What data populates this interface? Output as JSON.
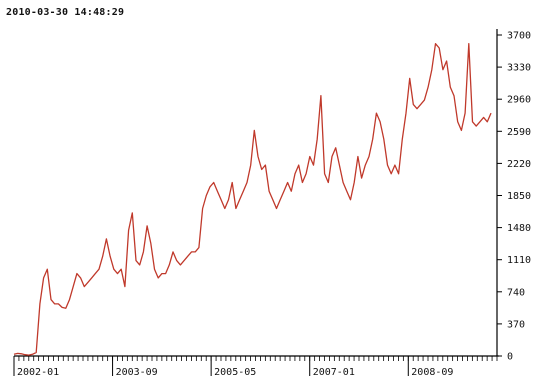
{
  "header": {
    "timestamp": "2010-03-30 14:48:29"
  },
  "colors": {
    "line": "#c0392b",
    "axis": "#000000",
    "text": "#111111"
  },
  "chart_data": {
    "type": "line",
    "title": "",
    "xlabel": "",
    "ylabel": "",
    "ylim": [
      0,
      3700
    ],
    "y_ticks": [
      0,
      370,
      740,
      1110,
      1480,
      1850,
      2220,
      2590,
      2960,
      3330,
      3700
    ],
    "y_axis_side": "right",
    "grid": false,
    "x_tick_labels": [
      "2002-01",
      "2003-09",
      "2005-05",
      "2007-01",
      "2008-09"
    ],
    "x_start": "2002-01",
    "x_end": "2010-03",
    "series": [
      {
        "values": [
          20,
          30,
          25,
          15,
          10,
          20,
          40,
          600,
          900,
          1000,
          650,
          600,
          600,
          560,
          550,
          650,
          800,
          950,
          900,
          800,
          850,
          900,
          950,
          1000,
          1150,
          1350,
          1150,
          1000,
          950,
          1000,
          800,
          1450,
          1650,
          1100,
          1050,
          1200,
          1500,
          1300,
          1000,
          900,
          950,
          950,
          1050,
          1200,
          1100,
          1050,
          1100,
          1150,
          1200,
          1200,
          1250,
          1700,
          1850,
          1950,
          2000,
          1900,
          1800,
          1700,
          1800,
          2000,
          1700,
          1800,
          1900,
          2000,
          2200,
          2600,
          2300,
          2150,
          2200,
          1900,
          1800,
          1700,
          1800,
          1900,
          2000,
          1900,
          2100,
          2200,
          2000,
          2100,
          2300,
          2200,
          2500,
          3000,
          2100,
          2000,
          2300,
          2400,
          2200,
          2000,
          1900,
          1800,
          2000,
          2300,
          2050,
          2200,
          2300,
          2500,
          2800,
          2700,
          2500,
          2200,
          2100,
          2200,
          2100,
          2500,
          2800,
          3200,
          2900,
          2850,
          2900,
          2950,
          3100,
          3300,
          3600,
          3550,
          3300,
          3400,
          3100,
          3000,
          2700,
          2600,
          2800,
          3600,
          2700,
          2650,
          2700,
          2750,
          2700,
          2800
        ]
      }
    ]
  }
}
